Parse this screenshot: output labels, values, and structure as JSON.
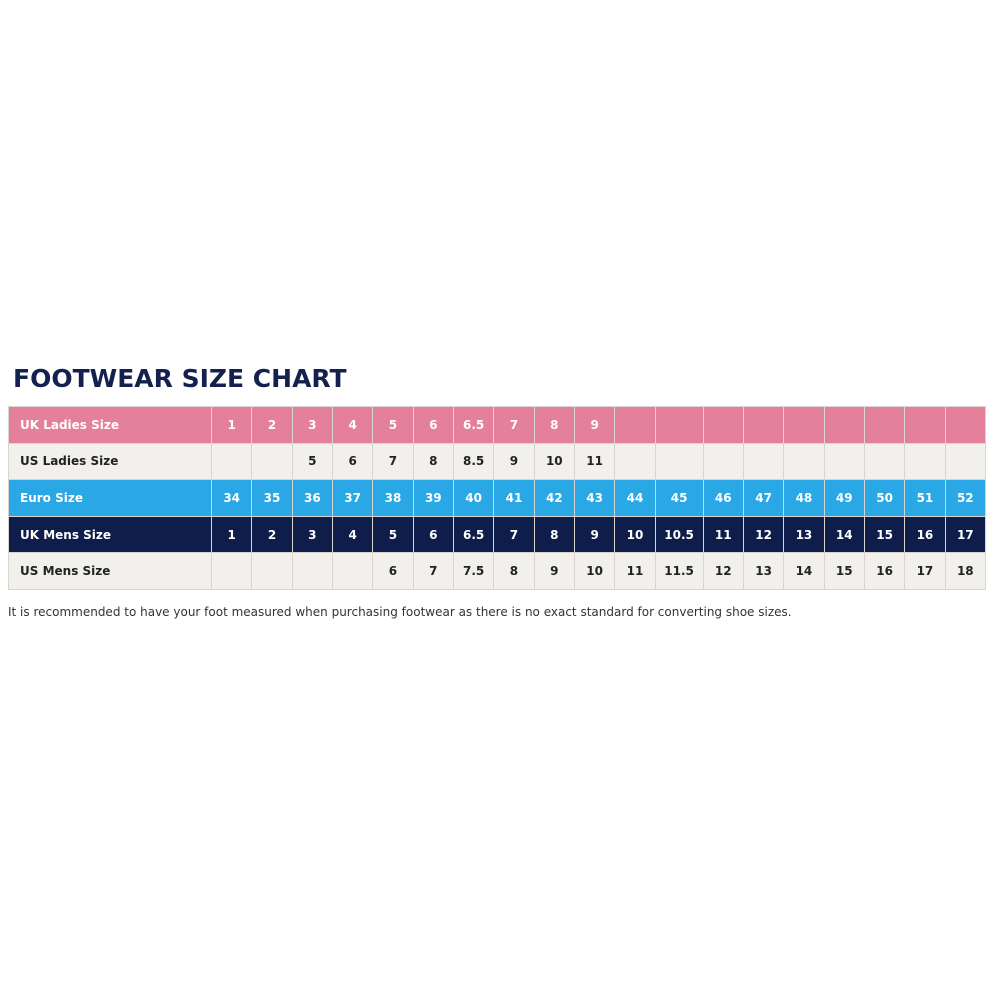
{
  "title": "FOOTWEAR SIZE CHART",
  "colors": {
    "uk_ladies": "#e5809a",
    "light_row": "#f1f0ec",
    "euro": "#2aa8e6",
    "uk_mens": "#0f1d4a",
    "title": "#14214f"
  },
  "rows": [
    {
      "label": "UK Ladies Size",
      "style": "r-pink",
      "cells": [
        "1",
        "2",
        "3",
        "4",
        "5",
        "6",
        "6.5",
        "7",
        "8",
        "9",
        "",
        "",
        "",
        "",
        "",
        "",
        "",
        "",
        ""
      ]
    },
    {
      "label": "US Ladies Size",
      "style": "r-light",
      "cells": [
        "",
        "",
        "5",
        "6",
        "7",
        "8",
        "8.5",
        "9",
        "10",
        "11",
        "",
        "",
        "",
        "",
        "",
        "",
        "",
        "",
        ""
      ]
    },
    {
      "label": "Euro Size",
      "style": "r-blue",
      "cells": [
        "34",
        "35",
        "36",
        "37",
        "38",
        "39",
        "40",
        "41",
        "42",
        "43",
        "44",
        "45",
        "46",
        "47",
        "48",
        "49",
        "50",
        "51",
        "52"
      ]
    },
    {
      "label": "UK Mens Size",
      "style": "r-navy",
      "cells": [
        "1",
        "2",
        "3",
        "4",
        "5",
        "6",
        "6.5",
        "7",
        "8",
        "9",
        "10",
        "10.5",
        "11",
        "12",
        "13",
        "14",
        "15",
        "16",
        "17"
      ]
    },
    {
      "label": "US Mens Size",
      "style": "r-light",
      "cells": [
        "",
        "",
        "",
        "",
        "6",
        "7",
        "7.5",
        "8",
        "9",
        "10",
        "11",
        "11.5",
        "12",
        "13",
        "14",
        "15",
        "16",
        "17",
        "18"
      ]
    }
  ],
  "note": "It is recommended to have your foot measured when purchasing footwear as there is no exact standard for converting shoe sizes."
}
